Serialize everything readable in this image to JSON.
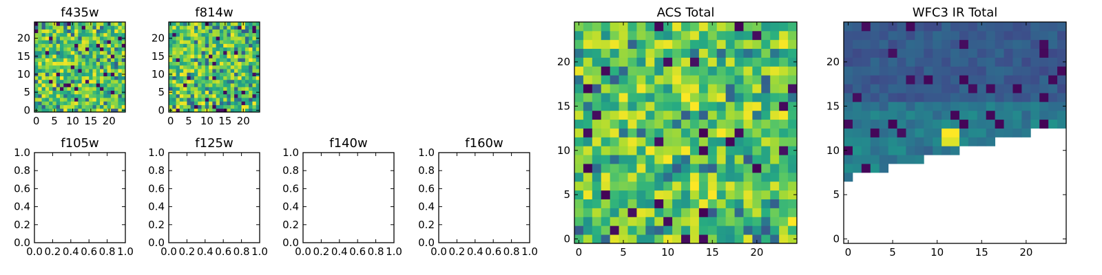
{
  "chart_data": [
    {
      "type": "heatmap",
      "title": "f435w",
      "xlim": [
        -0.5,
        24.5
      ],
      "ylim": [
        -0.5,
        24.5
      ],
      "xticks": [
        0,
        5,
        10,
        15,
        20
      ],
      "yticks": [
        0,
        5,
        10,
        15,
        20
      ],
      "colormap": "viridis",
      "grid_size": [
        25,
        25
      ],
      "pattern": "random noise, mostly green/yellow with scattered dark cells"
    },
    {
      "type": "heatmap",
      "title": "f814w",
      "xlim": [
        -0.5,
        24.5
      ],
      "ylim": [
        -0.5,
        24.5
      ],
      "xticks": [
        0,
        5,
        10,
        15,
        20
      ],
      "yticks": [
        0,
        5,
        10,
        15,
        20
      ],
      "colormap": "viridis",
      "grid_size": [
        25,
        25
      ],
      "pattern": "random noise, mostly green/yellow with scattered dark cells"
    },
    {
      "type": "heatmap",
      "title": "f105w",
      "xlim": [
        0.0,
        1.0
      ],
      "ylim": [
        0.0,
        1.0
      ],
      "xticks": [
        "0.0",
        "0.2",
        "0.4",
        "0.6",
        "0.8",
        "1.0"
      ],
      "yticks": [
        "0.0",
        "0.2",
        "0.4",
        "0.6",
        "0.8",
        "1.0"
      ],
      "empty": true
    },
    {
      "type": "heatmap",
      "title": "f125w",
      "xlim": [
        0.0,
        1.0
      ],
      "ylim": [
        0.0,
        1.0
      ],
      "xticks": [
        "0.0",
        "0.2",
        "0.4",
        "0.6",
        "0.8",
        "1.0"
      ],
      "yticks": [
        "0.0",
        "0.2",
        "0.4",
        "0.6",
        "0.8",
        "1.0"
      ],
      "empty": true
    },
    {
      "type": "heatmap",
      "title": "f140w",
      "xlim": [
        0.0,
        1.0
      ],
      "ylim": [
        0.0,
        1.0
      ],
      "xticks": [
        "0.0",
        "0.2",
        "0.4",
        "0.6",
        "0.8",
        "1.0"
      ],
      "yticks": [
        "0.0",
        "0.2",
        "0.4",
        "0.6",
        "0.8",
        "1.0"
      ],
      "empty": true
    },
    {
      "type": "heatmap",
      "title": "f160w",
      "xlim": [
        0.0,
        1.0
      ],
      "ylim": [
        0.0,
        1.0
      ],
      "xticks": [
        "0.0",
        "0.2",
        "0.4",
        "0.6",
        "0.8",
        "1.0"
      ],
      "yticks": [
        "0.0",
        "0.2",
        "0.4",
        "0.6",
        "0.8",
        "1.0"
      ],
      "empty": true
    },
    {
      "type": "heatmap",
      "title": "ACS Total",
      "xlim": [
        -0.5,
        24.5
      ],
      "ylim": [
        -0.5,
        24.5
      ],
      "xticks": [
        0,
        5,
        10,
        15,
        20
      ],
      "yticks": [
        0,
        5,
        10,
        15,
        20
      ],
      "colormap": "viridis",
      "grid_size": [
        25,
        25
      ],
      "pattern": "random noise, mostly green/yellow with scattered dark cells"
    },
    {
      "type": "heatmap",
      "title": "WFC3 IR Total",
      "xlim": [
        -0.5,
        24.5
      ],
      "ylim": [
        -0.5,
        24.5
      ],
      "xticks": [
        0,
        5,
        10,
        15,
        20
      ],
      "yticks": [
        0,
        5,
        10,
        15,
        20
      ],
      "colormap": "viridis",
      "grid_size": [
        25,
        25
      ],
      "pattern": "dark blue/teal upper-left region; lower-right triangular region blank (no data)",
      "blank_region": "cells below a diagonal from about (0, 7) to (24, 13)"
    }
  ]
}
